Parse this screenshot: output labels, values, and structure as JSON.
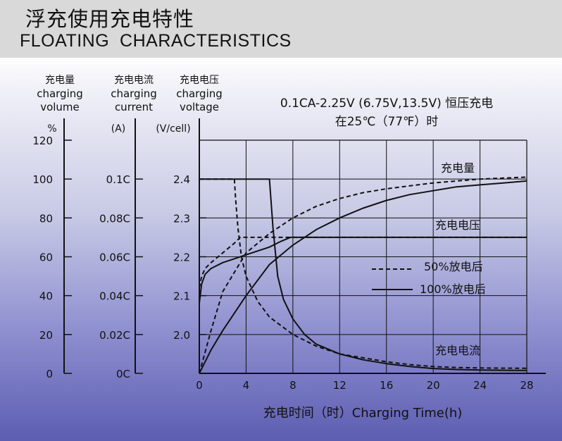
{
  "header": {
    "title_cn": "浮充使用充电特性",
    "title_en": "FLOATING  CHARACTERISTICS"
  },
  "colors": {
    "header_bg": "#d9d9d9",
    "gradient_bottom": "#5d5db2",
    "line": "#111111"
  },
  "chart_data": {
    "type": "line",
    "subtitle_line1": "0.1CA-2.25V (6.75V,13.5V) 恒压充电",
    "subtitle_line2": "在25℃（77℉）时",
    "xlabel": "充电时间（时）Charging Time(h)",
    "xlim": [
      0,
      28
    ],
    "x_ticks": [
      0,
      4,
      8,
      12,
      16,
      20,
      24,
      28
    ],
    "grid": true,
    "axes": [
      {
        "title_cn": "充电量",
        "title_en1": "charging",
        "title_en2": "volume",
        "unit": "%",
        "ticks": [
          "0",
          "20",
          "40",
          "60",
          "80",
          "100",
          "120"
        ],
        "range": [
          0,
          120
        ]
      },
      {
        "title_cn": "充电电流",
        "title_en1": "charging",
        "title_en2": "current",
        "unit": "(A)",
        "ticks": [
          "0C",
          "0.02C",
          "0.04C",
          "0.06C",
          "0.08C",
          "0.1C"
        ],
        "range": [
          0,
          0.12
        ]
      },
      {
        "title_cn": "充电电压",
        "title_en1": "charging",
        "title_en2": "voltage",
        "unit": "(V/cell)",
        "ticks": [
          "2.0",
          "2.1",
          "2.2",
          "2.3",
          "2.4"
        ],
        "range": [
          1.9,
          2.5
        ]
      }
    ],
    "legend": [
      {
        "label": "50%放电后",
        "style": "dashed"
      },
      {
        "label": "100%放电后",
        "style": "solid"
      }
    ],
    "curve_labels": {
      "volume": "充电量",
      "voltage": "充电电压",
      "current": "充电电流"
    },
    "series": [
      {
        "curve": "volume",
        "style": "solid",
        "axis": 0,
        "x": [
          0,
          1,
          2,
          4,
          6,
          8,
          10,
          12,
          14,
          16,
          18,
          20,
          22,
          24,
          26,
          28
        ],
        "y": [
          0,
          12,
          22,
          40,
          56,
          66,
          74,
          80,
          85,
          89,
          92,
          94,
          96,
          97,
          98,
          99
        ]
      },
      {
        "curve": "volume",
        "style": "dashed",
        "axis": 0,
        "x": [
          0,
          1,
          2,
          4,
          6,
          8,
          10,
          12,
          14,
          16,
          18,
          20,
          22,
          24,
          26,
          28
        ],
        "y": [
          0,
          22,
          42,
          62,
          72,
          80,
          86,
          90,
          93,
          95,
          96.5,
          98,
          99,
          100,
          100.5,
          101
        ]
      },
      {
        "curve": "voltage",
        "style": "solid",
        "axis": 2,
        "x": [
          0,
          0.2,
          0.5,
          1,
          2,
          3,
          4,
          5,
          6,
          7,
          7.8,
          28
        ],
        "y": [
          2.08,
          2.13,
          2.155,
          2.17,
          2.185,
          2.195,
          2.205,
          2.215,
          2.225,
          2.24,
          2.25,
          2.25
        ]
      },
      {
        "curve": "voltage",
        "style": "dashed",
        "axis": 2,
        "x": [
          0,
          0.2,
          0.5,
          1,
          2,
          3,
          3.5,
          28
        ],
        "y": [
          2.12,
          2.15,
          2.17,
          2.185,
          2.21,
          2.235,
          2.25,
          2.25
        ]
      },
      {
        "curve": "current",
        "style": "solid",
        "axis": 1,
        "x": [
          0,
          6,
          6.3,
          6.7,
          7.2,
          8,
          9,
          10,
          12,
          14,
          16,
          18,
          20,
          22,
          24,
          26,
          28
        ],
        "y": [
          0.1,
          0.1,
          0.075,
          0.05,
          0.038,
          0.028,
          0.02,
          0.015,
          0.01,
          0.007,
          0.005,
          0.0035,
          0.0025,
          0.002,
          0.0017,
          0.0016,
          0.0015
        ]
      },
      {
        "curve": "current",
        "style": "dashed",
        "axis": 1,
        "x": [
          0,
          3,
          3.1,
          3.3,
          3.6,
          4,
          5,
          6,
          8,
          10,
          12,
          14,
          16,
          18,
          20,
          22,
          24,
          26,
          28
        ],
        "y": [
          0.1,
          0.1,
          0.09,
          0.075,
          0.06,
          0.05,
          0.037,
          0.029,
          0.02,
          0.014,
          0.01,
          0.008,
          0.006,
          0.0045,
          0.0035,
          0.003,
          0.0028,
          0.0027,
          0.0026
        ]
      }
    ]
  }
}
